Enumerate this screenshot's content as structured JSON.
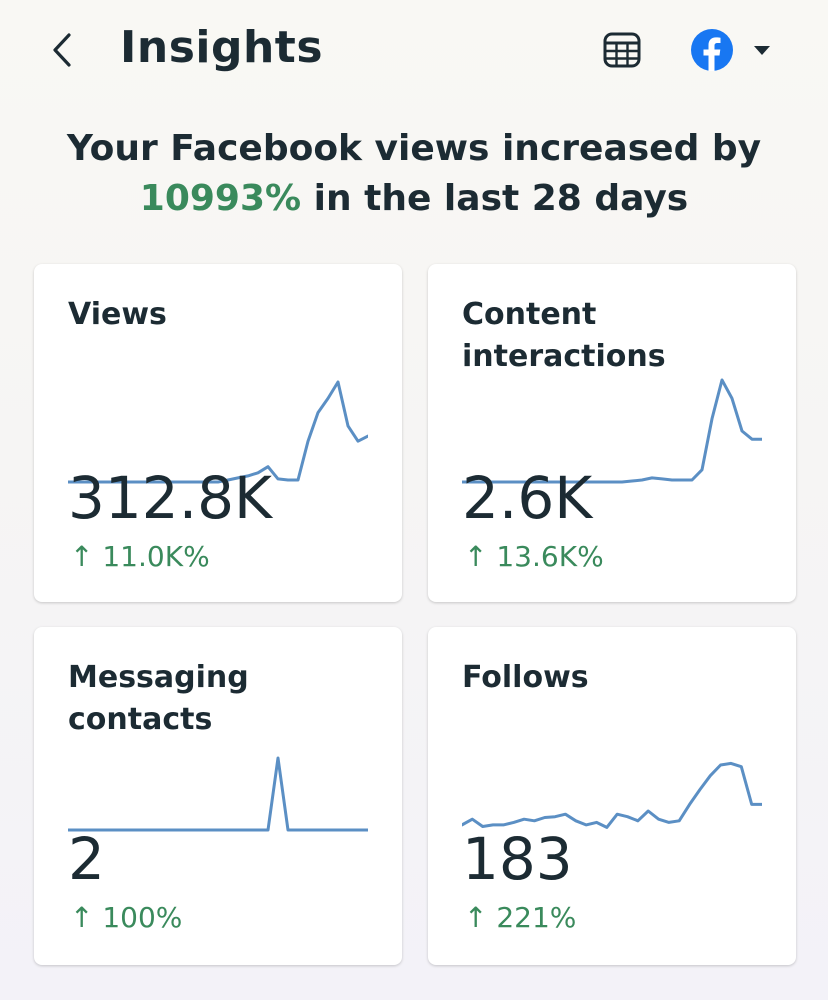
{
  "header": {
    "title": "Insights",
    "back_icon": "chevron-left-icon",
    "calendar_icon": "calendar-grid-icon",
    "account_icon": "facebook-logo-icon",
    "account_dropdown_icon": "caret-down-icon",
    "accent_color": "#1877f2"
  },
  "summary": {
    "prefix": "Your Facebook views increased by",
    "percent": "10993%",
    "suffix": " in the last 28 days",
    "highlight_color": "#3a8a5c"
  },
  "cards": [
    {
      "title": "Views",
      "value": "312.8K",
      "delta": "↑ 11.0K%",
      "trend": [
        0,
        0,
        0,
        0,
        0,
        0,
        0,
        0,
        0,
        0,
        0,
        0,
        0,
        0,
        0,
        0,
        0.02,
        0.04,
        0.06,
        0.09,
        0.15,
        0.03,
        0.02,
        0.02,
        0.4,
        0.68,
        0.82,
        0.98,
        0.55,
        0.4,
        0.45
      ]
    },
    {
      "title": "Content interactions",
      "value": "2.6K",
      "delta": "↑ 13.6K%",
      "trend": [
        0,
        0,
        0,
        0,
        0,
        0,
        0,
        0,
        0,
        0,
        0,
        0,
        0,
        0,
        0,
        0,
        0,
        0.01,
        0.02,
        0.04,
        0.03,
        0.02,
        0.02,
        0.02,
        0.12,
        0.62,
        1.0,
        0.82,
        0.5,
        0.42,
        0.42
      ]
    },
    {
      "title": "Messaging contacts",
      "value": "2",
      "delta": "↑ 100%",
      "trend": [
        0,
        0,
        0,
        0,
        0,
        0,
        0,
        0,
        0,
        0,
        0,
        0,
        0,
        0,
        0,
        0,
        0,
        0,
        0,
        0,
        0,
        1.0,
        0,
        0,
        0,
        0,
        0,
        0,
        0,
        0,
        0
      ]
    },
    {
      "title": "Follows",
      "value": "183",
      "delta": "↑ 221%",
      "trend": [
        0.05,
        0.12,
        0.03,
        0.05,
        0.05,
        0.08,
        0.12,
        0.1,
        0.14,
        0.15,
        0.18,
        0.1,
        0.05,
        0.08,
        0.02,
        0.18,
        0.15,
        0.1,
        0.22,
        0.12,
        0.08,
        0.1,
        0.3,
        0.48,
        0.65,
        0.78,
        0.8,
        0.76,
        0.3,
        0.3
      ]
    }
  ]
}
